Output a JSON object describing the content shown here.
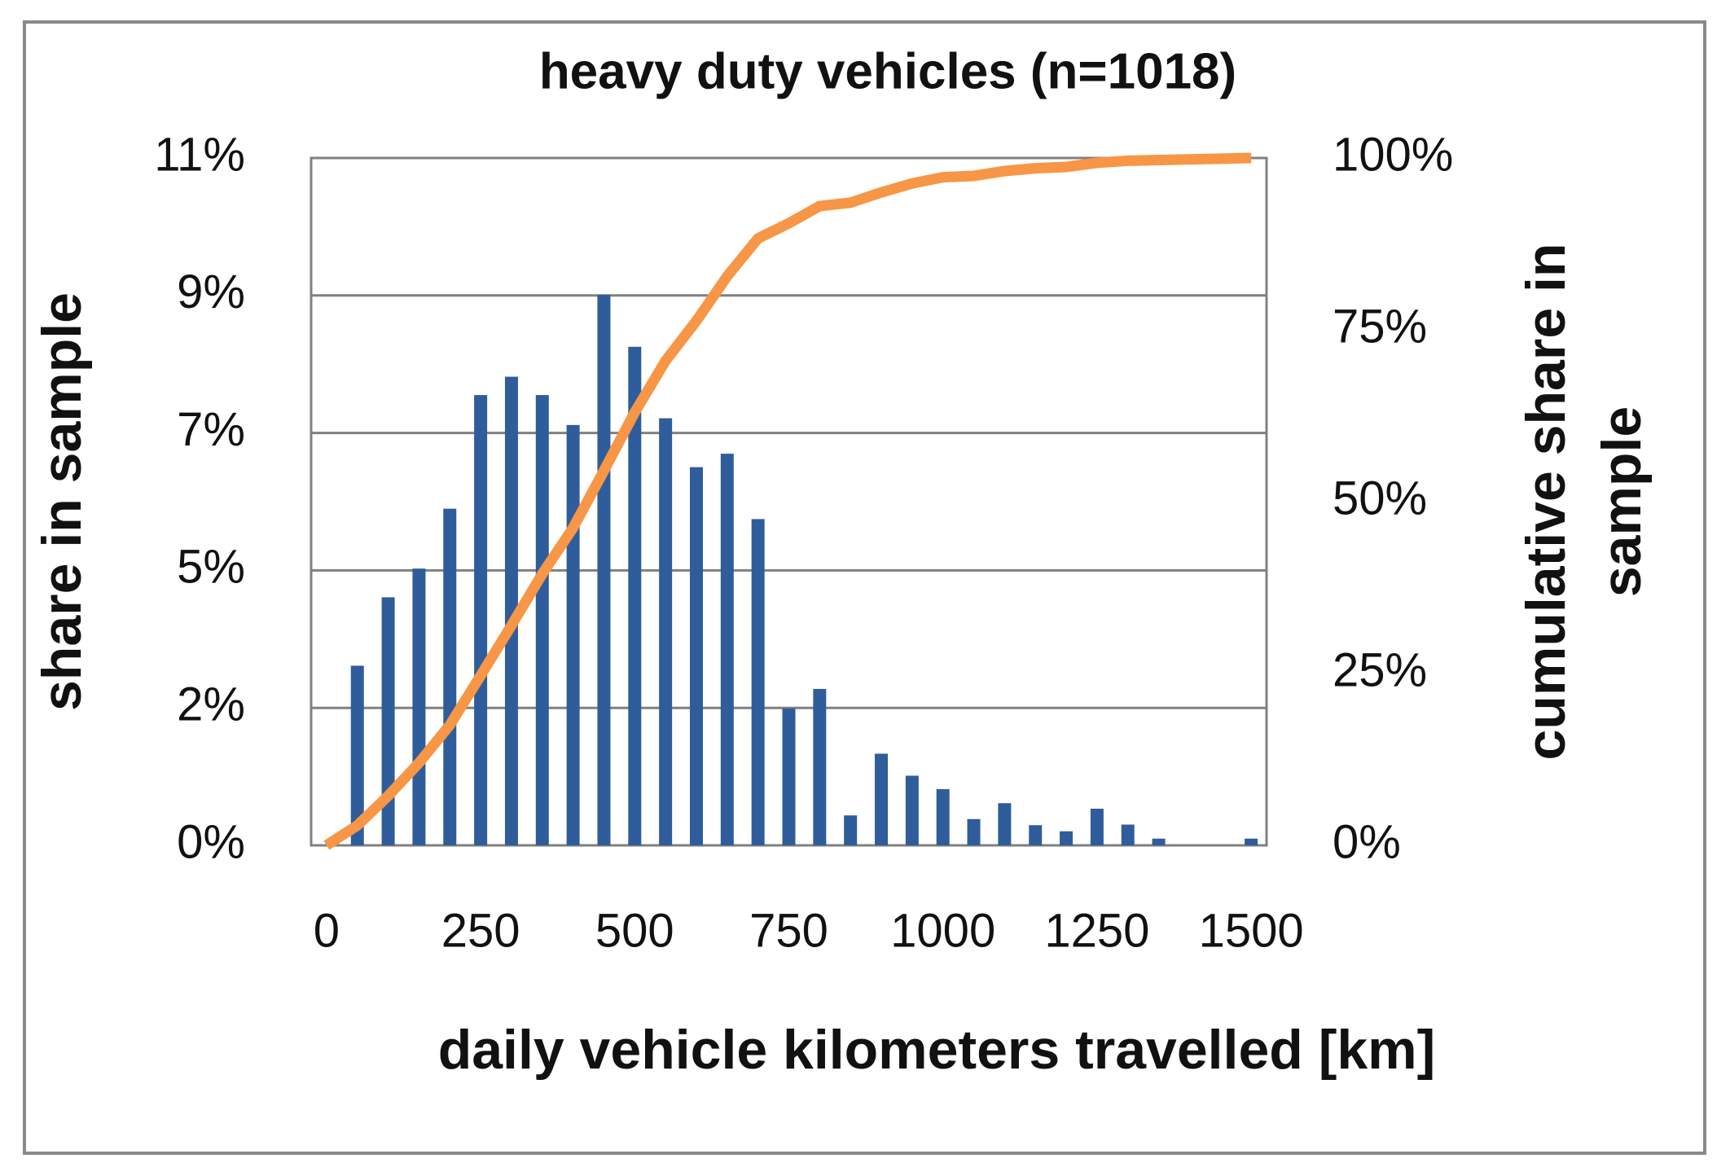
{
  "chart_data": {
    "type": "combo",
    "title": "heavy duty vehicles (n=1018)",
    "xlabel": "daily vehicle kilometers travelled [km]",
    "ylabel": "share in sample",
    "y2label": [
      "cumulative share in",
      "sample"
    ],
    "xlim": [
      -25,
      1525
    ],
    "xticks": [
      0,
      250,
      500,
      750,
      1000,
      1250,
      1500
    ],
    "ylim": [
      0,
      11.25
    ],
    "yticks": [
      {
        "value": 0,
        "label": "0%"
      },
      {
        "value": 2.25,
        "label": "2%"
      },
      {
        "value": 4.5,
        "label": "5%"
      },
      {
        "value": 6.75,
        "label": "7%"
      },
      {
        "value": 9,
        "label": "9%"
      },
      {
        "value": 11.25,
        "label": "11%"
      }
    ],
    "y2lim": [
      0,
      100
    ],
    "y2ticks": [
      {
        "value": 0,
        "label": "0%"
      },
      {
        "value": 25,
        "label": "25%"
      },
      {
        "value": 50,
        "label": "50%"
      },
      {
        "value": 75,
        "label": "75%"
      },
      {
        "value": 100,
        "label": "100%"
      }
    ],
    "grid": true,
    "series": [
      {
        "type": "bar",
        "color": "#2f5d9b",
        "x": [
          50,
          100,
          150,
          200,
          250,
          300,
          350,
          400,
          450,
          500,
          550,
          600,
          650,
          700,
          750,
          800,
          850,
          900,
          950,
          1000,
          1050,
          1100,
          1150,
          1200,
          1250,
          1300,
          1350,
          1400,
          1450,
          1500
        ],
        "values": [
          2.94,
          4.06,
          4.53,
          5.51,
          7.37,
          7.67,
          7.37,
          6.88,
          9.01,
          8.16,
          6.99,
          6.19,
          6.41,
          5.34,
          2.24,
          2.56,
          0.49,
          1.5,
          1.14,
          0.92,
          0.43,
          0.69,
          0.33,
          0.23,
          0.6,
          0.34,
          0.11,
          0,
          0,
          0.11
        ]
      },
      {
        "type": "line",
        "axis": "y2",
        "color": "#f79646",
        "x": [
          0,
          50,
          100,
          150,
          200,
          250,
          300,
          350,
          400,
          450,
          500,
          550,
          600,
          650,
          700,
          750,
          800,
          850,
          900,
          950,
          1000,
          1050,
          1100,
          1150,
          1200,
          1250,
          1300,
          1350,
          1400,
          1450,
          1500
        ],
        "values": [
          0,
          2.9,
          7.2,
          12,
          17.5,
          24.7,
          32,
          39.5,
          46.2,
          54.5,
          63,
          70.5,
          76.3,
          82.8,
          88.3,
          90.5,
          93,
          93.5,
          95,
          96.3,
          97.2,
          97.4,
          98.1,
          98.5,
          98.7,
          99.3,
          99.6,
          99.7,
          99.8,
          99.9,
          100
        ]
      }
    ]
  }
}
